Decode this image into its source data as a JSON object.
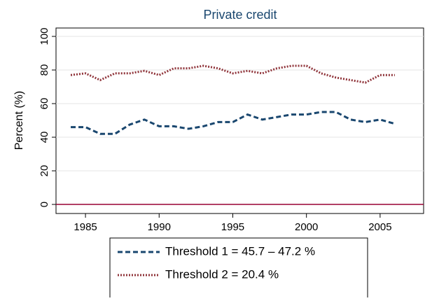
{
  "chart_data": {
    "type": "line",
    "title": "Private credit",
    "y_label": "Percent (%)",
    "x": [
      1984,
      1985,
      1986,
      1987,
      1988,
      1989,
      1990,
      1991,
      1992,
      1993,
      1994,
      1995,
      1996,
      1997,
      1998,
      1999,
      2000,
      2001,
      2002,
      2003,
      2004,
      2005,
      2006
    ],
    "series": [
      {
        "name": "Threshold 1 = 45.7 – 47.2 %",
        "color": "#1a476f",
        "dash": "dash",
        "values": [
          46,
          46,
          42,
          42,
          47.5,
          50.5,
          46.5,
          46.5,
          45,
          46.5,
          49,
          49,
          53.5,
          50.5,
          52,
          53.5,
          53.5,
          55,
          55,
          50.5,
          49,
          50.5,
          48
        ]
      },
      {
        "name": "Threshold 2 = 20.4 %",
        "color": "#90353b",
        "dash": "dot",
        "values": [
          77,
          78,
          74,
          78,
          78,
          79.5,
          77,
          81,
          81,
          82.5,
          81,
          78,
          79.5,
          78,
          81,
          82.5,
          82.5,
          78,
          75.5,
          74,
          72.5,
          77,
          77
        ]
      }
    ],
    "reference_line": {
      "value": 0,
      "color": "#990033"
    },
    "xlim": [
      1983,
      2008
    ],
    "xticks": [
      1985,
      1990,
      1995,
      2000,
      2005
    ],
    "ylim": [
      -5.4,
      105
    ],
    "yticks": [
      0,
      20,
      40,
      60,
      80,
      100
    ],
    "grid": true
  }
}
